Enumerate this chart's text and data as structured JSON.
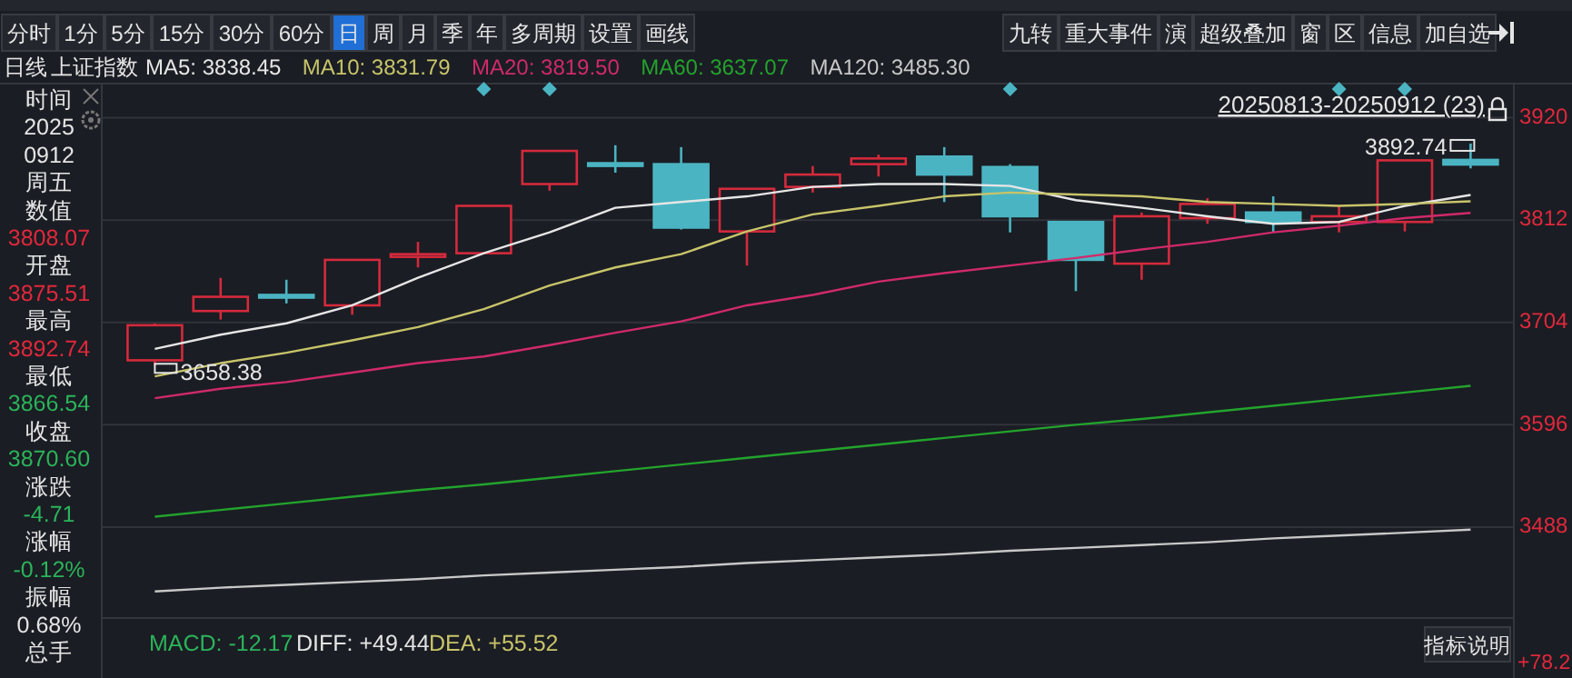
{
  "chart_data": {
    "type": "candlestick",
    "title": "上证指数",
    "subtitle": "日线",
    "categories": [
      null,
      null,
      null,
      null,
      null,
      null,
      null,
      null,
      null,
      null,
      null,
      null,
      null,
      null,
      null,
      null,
      null,
      null,
      null,
      null,
      null,
      null
    ],
    "ohlc": [
      null,
      [
        3664,
        3703,
        3658.38,
        3701
      ],
      [
        3716,
        3751,
        3707,
        3731
      ],
      [
        3733,
        3749,
        3724,
        3731
      ],
      [
        3722,
        3770,
        3712,
        3770
      ],
      [
        3775,
        3789,
        3762,
        3776
      ],
      [
        3777,
        3827,
        3777,
        3827
      ],
      [
        3850,
        3885,
        3843,
        3885
      ],
      [
        3872,
        3891,
        3862,
        3871
      ],
      [
        3871,
        3889,
        3802,
        3804
      ],
      [
        3800,
        3845,
        3764,
        3845
      ],
      [
        3847,
        3869,
        3841,
        3860
      ],
      [
        3871,
        3881,
        3858,
        3877
      ],
      [
        3879,
        3889,
        3831,
        3860
      ],
      [
        3868,
        3871,
        3799,
        3816
      ],
      [
        3810,
        3810,
        3737,
        3770
      ],
      [
        3766,
        3820,
        3749,
        3816
      ],
      [
        3814,
        3835,
        3808,
        3829
      ],
      [
        3820,
        3837,
        3799,
        3810
      ],
      [
        3810,
        3827,
        3799,
        3816
      ],
      [
        3810,
        3875,
        3800,
        3875
      ],
      [
        3875.51,
        3892.74,
        3866.54,
        3870.6
      ]
    ],
    "colors": [
      null,
      "#d42a3c",
      "#d42a3c",
      "#4bb4c2",
      "#d42a3c",
      "#d42a3c",
      "#d42a3c",
      "#d42a3c",
      "#4bb4c2",
      "#4bb4c2",
      "#d42a3c",
      "#d42a3c",
      "#d42a3c",
      "#4bb4c2",
      "#4bb4c2",
      "#4bb4c2",
      "#d42a3c",
      "#d42a3c",
      "#4bb4c2",
      "#d42a3c",
      "#d42a3c",
      "#4bb4c2"
    ],
    "series": [
      {
        "type": "line",
        "name": "MA5: 3838.45",
        "color": "#e6e6e6",
        "values": [
          null,
          3676,
          3691,
          3703,
          3722,
          3751,
          3777,
          3799,
          3825,
          3831,
          3837,
          3847,
          3850,
          3850,
          3848,
          3833,
          3825,
          3816,
          3808,
          3810,
          3827,
          3838.45
        ]
      },
      {
        "type": "line",
        "name": "MA10: 3831.79",
        "color": "#c8c46a",
        "values": [
          null,
          3647,
          3661,
          3672,
          3685,
          3699,
          3718,
          3743,
          3762,
          3776,
          3800,
          3818,
          3827,
          3837,
          3841,
          3839,
          3837,
          3831,
          3829,
          3827,
          3829,
          3831.79
        ]
      },
      {
        "type": "line",
        "name": "MA20: 3819.50",
        "color": "#d02a6a",
        "values": [
          null,
          3624,
          3634,
          3641,
          3651,
          3661,
          3668,
          3680,
          3693,
          3705,
          3722,
          3733,
          3747,
          3756,
          3764,
          3772,
          3781,
          3789,
          3799,
          3806,
          3814,
          3819.5
        ]
      },
      {
        "type": "line",
        "name": "MA60: 3637.07",
        "color": "#23a32d",
        "values": [
          null,
          3499,
          3506,
          3513,
          3520,
          3527,
          3533,
          3540,
          3547,
          3554,
          3561,
          3568,
          3575,
          3582,
          3589,
          3596,
          3602,
          3609,
          3616,
          3623,
          3630,
          3637.07
        ]
      },
      {
        "type": "line",
        "name": "MA120: 3485.30",
        "color": "#c8c8c8",
        "values": [
          null,
          3420,
          3424,
          3427,
          3430,
          3433,
          3437,
          3440,
          3443,
          3446,
          3450,
          3453,
          3456,
          3459,
          3463,
          3466,
          3469,
          3472,
          3476,
          3479,
          3482,
          3485.3
        ]
      }
    ],
    "ylim": [
      3392,
      3956
    ],
    "yticks": [
      3488,
      3596,
      3704,
      3812,
      3920
    ],
    "grid": "y",
    "legend": "top left",
    "annotations": [
      "分时",
      "1分",
      "5分",
      "15分",
      "30分",
      "60分",
      "日",
      "周",
      "月",
      "季",
      "年",
      "多周期",
      "设置",
      "画线",
      "九转",
      "重大事件",
      "演",
      "超级叠加",
      "窗",
      "区",
      "信息",
      "加自选",
      "时间",
      "2025",
      "0912",
      "周五",
      "数值",
      "3808.07",
      "开盘",
      "3875.51",
      "最高",
      "3892.74",
      "最低",
      "3866.54",
      "收盘",
      "3870.60",
      "涨跌",
      "-4.71",
      "涨幅",
      "-0.12%",
      "振幅",
      "0.68%",
      "总手",
      "20250813-20250912 (23)",
      "MACD: -12.17",
      "DIFF: +49.44",
      "DEA: +55.52",
      "指标说明",
      "+78.2",
      "3892.74",
      "3658.38"
    ]
  }
}
